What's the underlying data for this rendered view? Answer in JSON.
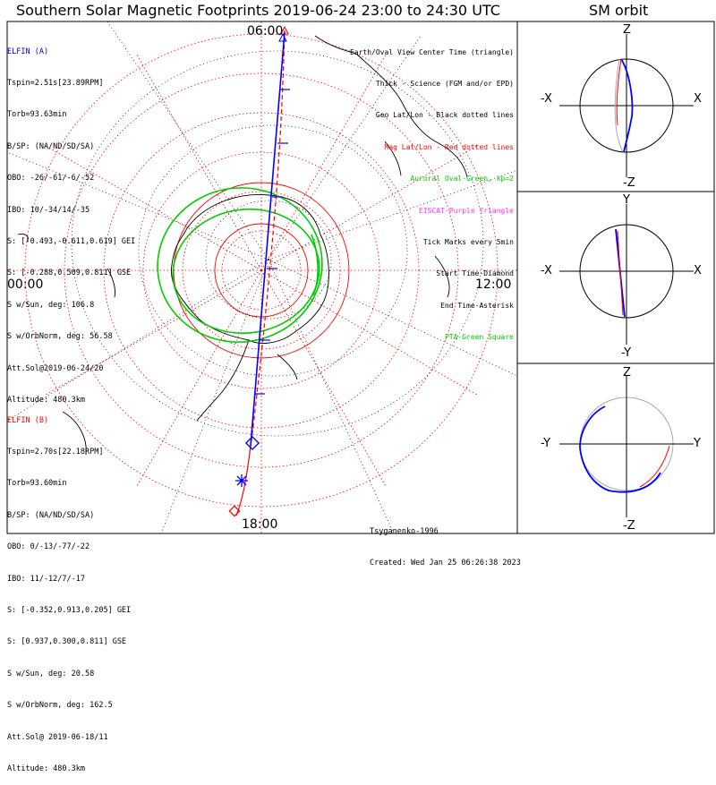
{
  "title": "Southern Solar Magnetic Footprints 2019-06-24 23:00 to 24:30 UTC",
  "orbit_title": "SM orbit",
  "colors": {
    "elfin_a": "#0000ff",
    "elfin_b": "#ff0000",
    "oval": "#00cc00",
    "eiscat": "#ff33ff",
    "grid": "#ff0000",
    "coast": "#000000"
  },
  "polar_plot": {
    "mlt_labels": {
      "top": "06:00",
      "left": "00:00",
      "right": "12:00",
      "bottom": "18:00"
    }
  },
  "elfin_a": {
    "name": "ELFIN (A)",
    "lines": [
      "Tspin=2.51s[23.89RPM]",
      "Torb=93.63min",
      "B/SP: (NA/ND/SD/SA)",
      "OBO: -26/-61/-6/-52",
      "IBO: 10/-34/14/-35",
      "S: [-0.493,-0.611,0.619] GEI",
      "S: [-0.288,0.509,0.811] GSE",
      "S w/Sun, deg: 106.8",
      "S w/OrbNorm, deg: 56.58",
      "Att.Sol@2019-06-24/20",
      "Altitude: 480.3km"
    ]
  },
  "elfin_b": {
    "name": "ELFIN (B)",
    "lines": [
      "Tspin=2.70s[22.18RPM]",
      "Torb=93.60min",
      "B/SP: (NA/ND/SD/SA)",
      "OBO: 0/-13/-77/-22",
      "IBO: 11/-12/7/-17",
      "S: [-0.352,0.913,0.205] GEI",
      "S: [0.937,0.300,0.811] GSE",
      "S w/Sun, deg: 20.58",
      "S w/OrbNorm, deg: 162.5",
      "Att.Sol@ 2019-06-18/11",
      "Altitude: 480.3km"
    ]
  },
  "legend": [
    {
      "text": "Earth/Oval View Center Time (triangle)",
      "color": "#000000"
    },
    {
      "text": "Thick - Science (FGM and/or EPD)",
      "color": "#000000"
    },
    {
      "text": "Geo Lat/Lon - Black dotted lines",
      "color": "#000000"
    },
    {
      "text": "Mag Lat/Lon - Red dotted lines",
      "color": "#ff0000"
    },
    {
      "text": "Auroral Oval-Green, kp=2",
      "color": "#00cc00"
    },
    {
      "text": "EISCAT-Purple Triangle",
      "color": "#ff33ff"
    },
    {
      "text": "Tick Marks every 5min",
      "color": "#000000"
    },
    {
      "text": "Start Time-Diamond",
      "color": "#000000"
    },
    {
      "text": "End Time-Asterisk",
      "color": "#000000"
    },
    {
      "text": "PTA-Green Square",
      "color": "#00cc00"
    }
  ],
  "credits": [
    "Tsyganenko-1996",
    "Created: Wed Jan 25 06:26:38 2023"
  ],
  "orbit_panels": [
    {
      "top": "Z",
      "bottom": "-Z",
      "left": "-X",
      "right": "X"
    },
    {
      "top": "Y",
      "bottom": "-Y",
      "left": "-X",
      "right": "X"
    },
    {
      "top": "Z",
      "bottom": "-Z",
      "left": "-Y",
      "right": "Y"
    }
  ],
  "chart_data": {
    "type": "scatter",
    "projection": "polar, southern magnetic hemisphere",
    "mlt_ticks": [
      "06:00",
      "00:00",
      "12:00",
      "18:00"
    ],
    "grid": true,
    "series": [
      {
        "name": "ELFIN (A)",
        "color": "#0000ff"
      },
      {
        "name": "ELFIN (B)",
        "color": "#ff0000"
      }
    ]
  }
}
